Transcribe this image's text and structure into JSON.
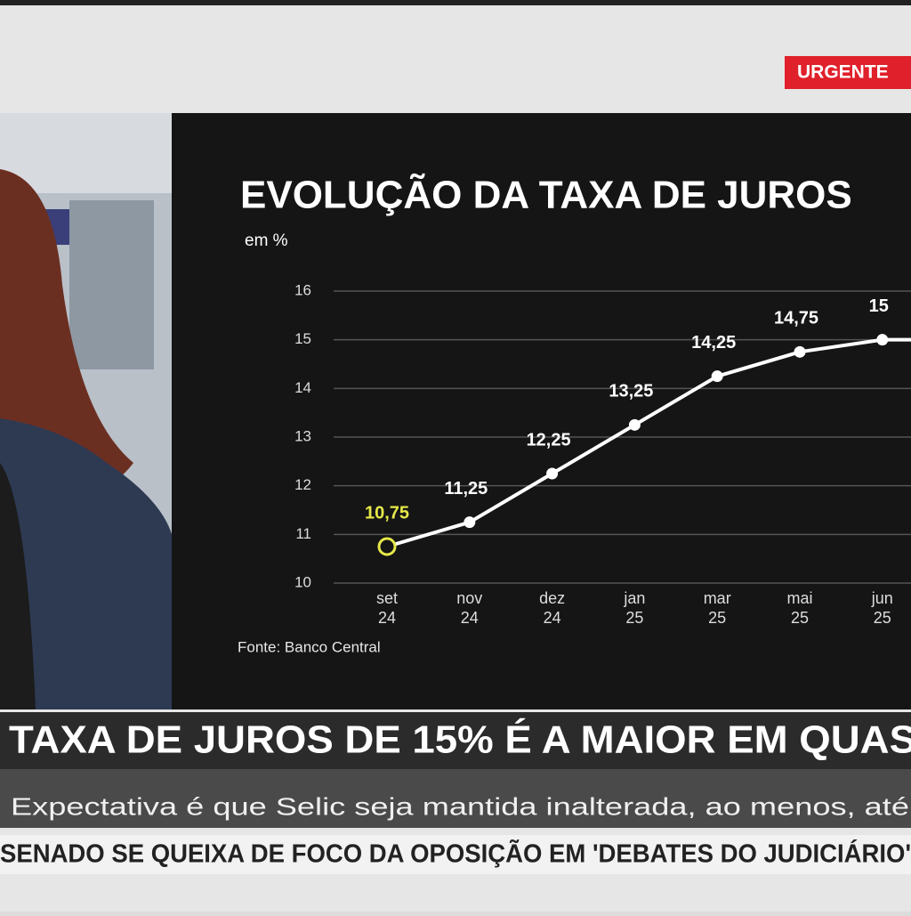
{
  "banner": "URGENTE",
  "chart_data": {
    "type": "line",
    "title": "EVOLUÇÃO DA TAXA DE JUROS",
    "y_label": "em %",
    "categories": [
      "set 24",
      "nov 24",
      "dez 24",
      "jan 25",
      "mar 25",
      "mai 25",
      "jun 25",
      null
    ],
    "values": [
      10.75,
      11.25,
      12.25,
      13.25,
      14.25,
      14.75,
      15,
      15
    ],
    "value_labels": [
      "10,75",
      "11,25",
      "12,25",
      "13,25",
      "14,25",
      "14,75",
      "15",
      null
    ],
    "color": "#ffffff",
    "highlight_color": "#e6e84a",
    "ylim": [
      10,
      16
    ],
    "yticks": [
      10,
      11,
      12,
      13,
      14,
      15,
      16
    ],
    "grid": true,
    "source": "Fonte: Banco Central"
  },
  "headline": "TAXA DE JUROS DE 15% É A MAIOR EM QUAS",
  "subheadline": "Expectativa é que Selic seja mantida inalterada, ao menos, até",
  "ticker": "SENADO SE QUEIXA DE FOCO DA OPOSIÇÃO EM 'DEBATES DO JUDICIÁRIO'"
}
